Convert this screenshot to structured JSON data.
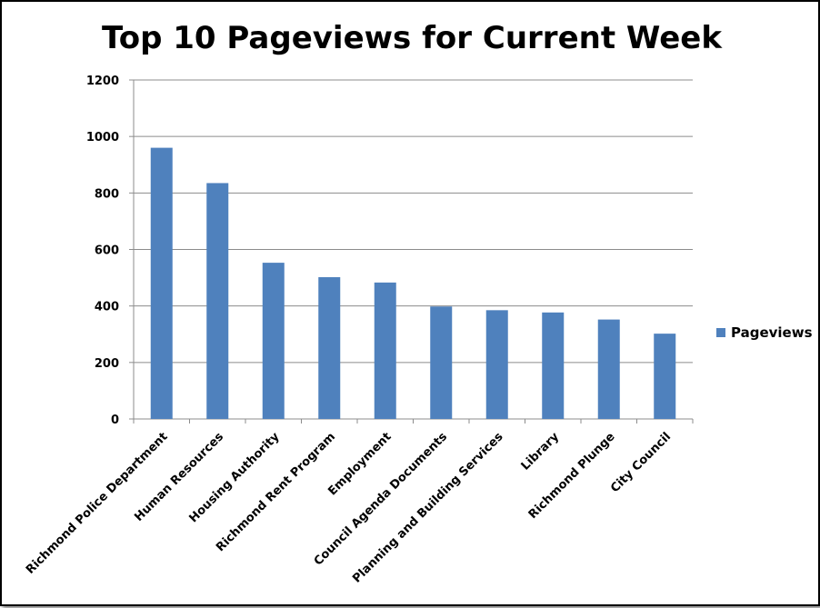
{
  "chart_data": {
    "type": "bar",
    "title": "Top 10 Pageviews for Current Week",
    "categories": [
      "Richmond Police Department",
      "Human Resources",
      "Housing Authority",
      "Richmond Rent Program",
      "Employment",
      "Council Agenda Documents",
      "Planning and Building Services",
      "Library",
      "Richmond Plunge",
      "City Council"
    ],
    "series": [
      {
        "name": "Pageviews",
        "values": [
          960,
          835,
          553,
          502,
          483,
          398,
          385,
          377,
          352,
          302
        ],
        "color": "#4f81bd"
      }
    ],
    "ylim": [
      0,
      1200
    ],
    "yticks": [
      0,
      200,
      400,
      600,
      800,
      1000,
      1200
    ],
    "xlabel": "",
    "ylabel": "",
    "grid": true,
    "legend": "right"
  }
}
